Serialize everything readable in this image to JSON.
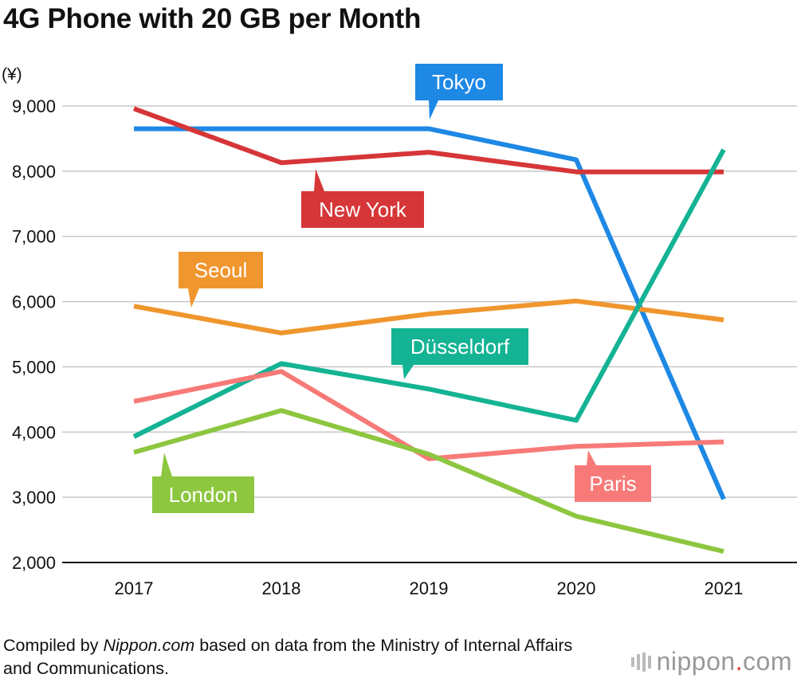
{
  "title": "4G Phone with 20 GB per Month",
  "chart_data": {
    "type": "line",
    "title": "4G Phone with 20 GB per Month",
    "ylabel": "(¥)",
    "xlabel": "",
    "x": [
      "2017",
      "2018",
      "2019",
      "2020",
      "2021"
    ],
    "ylim": [
      2000,
      9000
    ],
    "yticks": [
      2000,
      3000,
      4000,
      5000,
      6000,
      7000,
      8000,
      9000
    ],
    "ytick_labels": [
      "2,000",
      "3,000",
      "4,000",
      "5,000",
      "6,000",
      "7,000",
      "8,000",
      "9,000"
    ],
    "grid": "horizontal",
    "series": [
      {
        "name": "Tokyo",
        "color": "#1e88e5",
        "values": [
          8650,
          8650,
          8650,
          8175,
          2970
        ]
      },
      {
        "name": "New York",
        "color": "#d63638",
        "values": [
          8960,
          8130,
          8290,
          7990,
          7990
        ]
      },
      {
        "name": "Seoul",
        "color": "#f0962e",
        "values": [
          5930,
          5520,
          5810,
          6010,
          5720
        ]
      },
      {
        "name": "Düsseldorf",
        "color": "#14b394",
        "values": [
          3930,
          5050,
          4660,
          4180,
          8330
        ]
      },
      {
        "name": "Paris",
        "color": "#f77a78",
        "values": [
          4470,
          4930,
          3590,
          3780,
          3850
        ]
      },
      {
        "name": "London",
        "color": "#8dc63f",
        "values": [
          3690,
          4330,
          3660,
          2710,
          2170
        ]
      }
    ]
  },
  "source": {
    "prefix": "Compiled by ",
    "site": "Nippon.com",
    "suffix": " based on data from the Ministry of Internal Affairs and Communications."
  },
  "brand": {
    "name": "nippon",
    "dot": ".",
    "tld": "com"
  }
}
